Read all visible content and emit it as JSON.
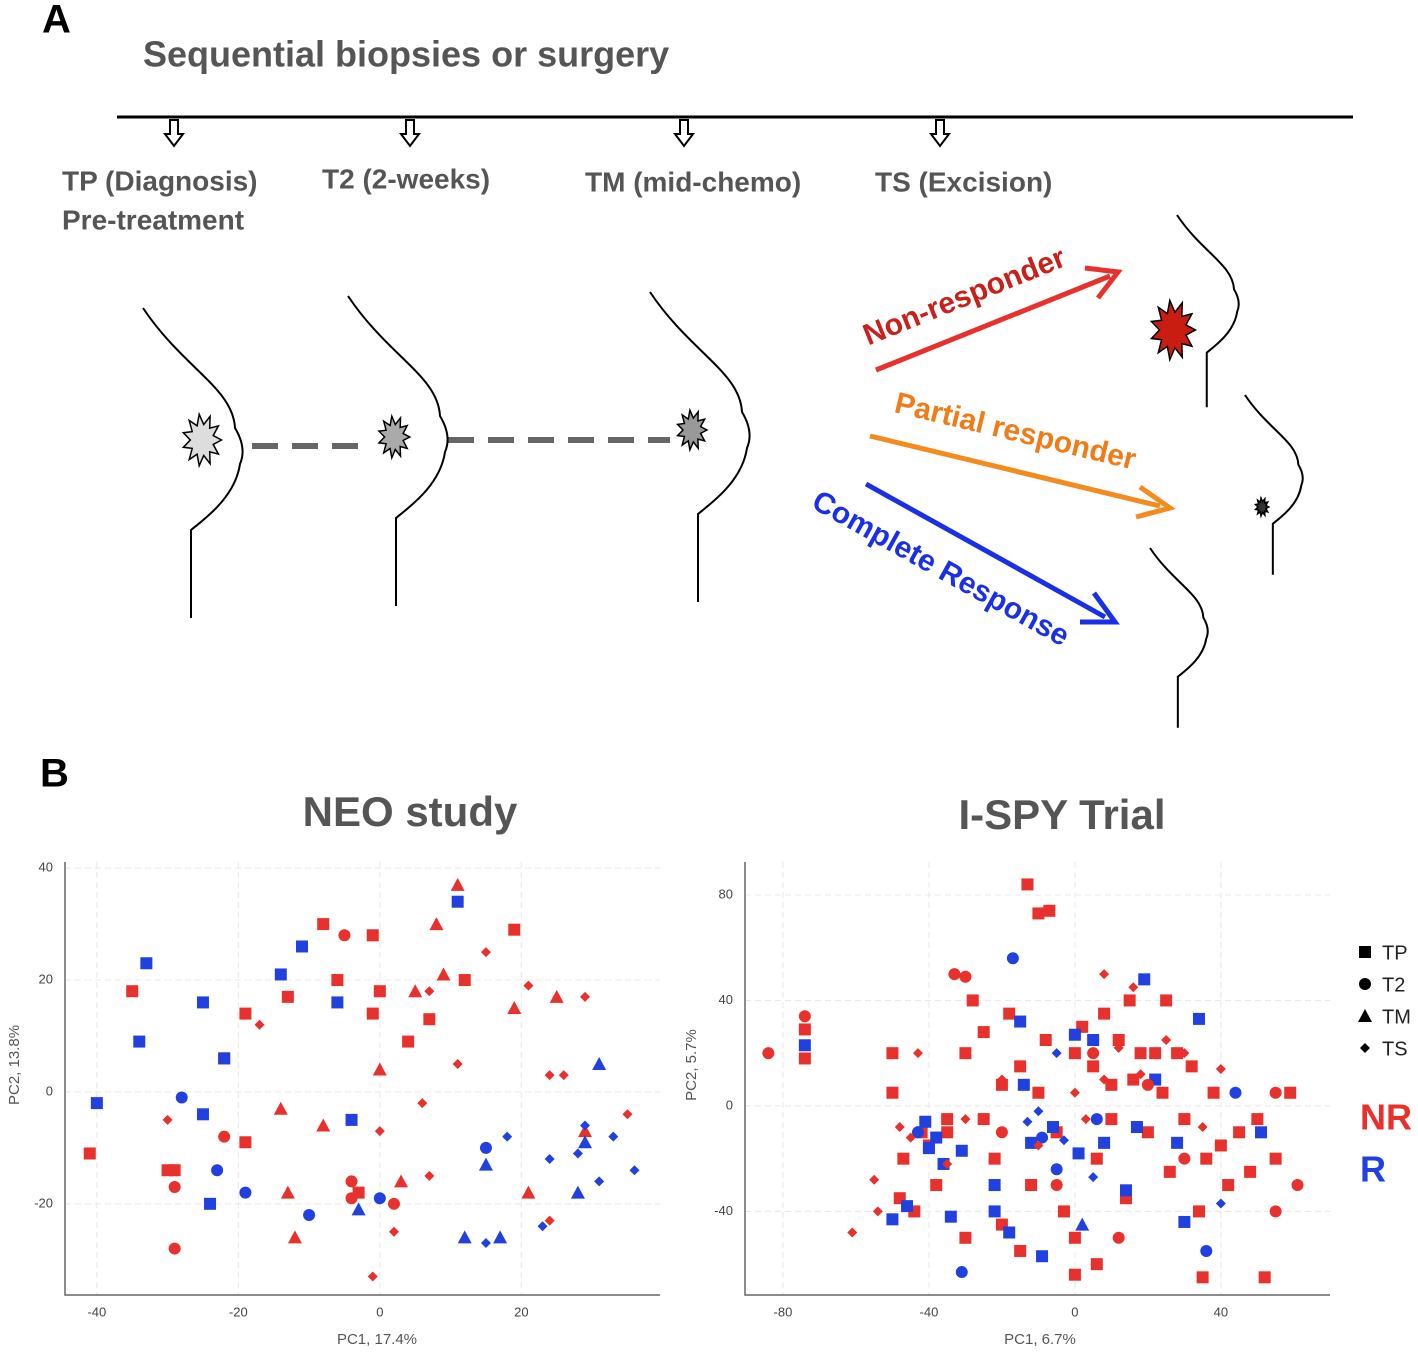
{
  "panel_a": {
    "label": "A",
    "title": "Sequential biopsies or surgery",
    "timepoints": [
      "TP (Diagnosis)",
      "Pre-treatment",
      "T2 (2-weeks)",
      "TM (mid-chemo)",
      "TS (Excision)"
    ],
    "responses": [
      "Non-responder",
      "Partial responder",
      "Complete Response"
    ]
  },
  "panel_b": {
    "label": "B"
  },
  "legend": {
    "markers": [
      {
        "name": "TP",
        "marker": "square"
      },
      {
        "name": "T2",
        "marker": "circle"
      },
      {
        "name": "TM",
        "marker": "triangle"
      },
      {
        "name": "TS",
        "marker": "diamond"
      }
    ],
    "groups": [
      {
        "name": "NR",
        "color": "#e8302c"
      },
      {
        "name": "R",
        "color": "#2140e0"
      }
    ]
  },
  "chart_data": [
    {
      "type": "scatter",
      "title": "NEO study",
      "x_label": "PC1, 17.4%",
      "y_label": "PC2, 13.8%",
      "xlim": [
        -44.5,
        39.6
      ],
      "ylim": [
        -36.3,
        41.1
      ],
      "xticks": [
        -40,
        -20,
        0,
        20
      ],
      "yticks": [
        -20,
        0,
        20,
        40
      ],
      "grid": true,
      "series": [
        {
          "color": "#e8302c",
          "marker": "square",
          "x": [
            -41,
            -35,
            -22,
            -19,
            -19,
            -13,
            -8,
            -6,
            -1,
            0,
            -1,
            4,
            7,
            12,
            19,
            -3,
            -29,
            -30
          ],
          "y": [
            -11,
            18,
            6,
            -9,
            14,
            17,
            30,
            20,
            28,
            18,
            14,
            9,
            13,
            20,
            29,
            -18,
            -14,
            -14
          ]
        },
        {
          "color": "#2140e0",
          "marker": "square",
          "x": [
            -40,
            -33,
            -34,
            -25,
            -25,
            -24,
            -22,
            -14,
            -11,
            -4,
            11,
            -6
          ],
          "y": [
            -2,
            23,
            9,
            16,
            -4,
            -20,
            6,
            21,
            26,
            -5,
            34,
            16
          ]
        },
        {
          "color": "#e8302c",
          "marker": "circle",
          "x": [
            -29,
            -29,
            -22,
            -5,
            -4,
            2,
            -4
          ],
          "y": [
            -17,
            -28,
            -8,
            28,
            -16,
            -20,
            -19
          ]
        },
        {
          "color": "#2140e0",
          "marker": "circle",
          "x": [
            -28,
            -23,
            -19,
            -10,
            0,
            15
          ],
          "y": [
            -1,
            -14,
            -18,
            -22,
            -19,
            -10
          ]
        },
        {
          "color": "#e8302c",
          "marker": "triangle",
          "x": [
            -14,
            -13,
            -12,
            -8,
            0,
            3,
            5,
            8,
            9,
            11,
            19,
            21,
            25,
            29
          ],
          "y": [
            -3,
            -18,
            -26,
            -6,
            4,
            -16,
            18,
            30,
            21,
            37,
            15,
            -18,
            17,
            -7
          ]
        },
        {
          "color": "#2140e0",
          "marker": "triangle",
          "x": [
            -3,
            12,
            15,
            17,
            28,
            29,
            31
          ],
          "y": [
            -21,
            -26,
            -13,
            -26,
            -18,
            -9,
            5
          ]
        },
        {
          "color": "#e8302c",
          "marker": "diamond",
          "x": [
            -30,
            -17,
            0,
            6,
            7,
            11,
            15,
            21,
            24,
            26,
            29,
            35,
            2,
            7,
            -1,
            24
          ],
          "y": [
            -5,
            12,
            -7,
            -2,
            18,
            5,
            25,
            19,
            3,
            3,
            17,
            -4,
            -25,
            -15,
            -33,
            -23
          ]
        },
        {
          "color": "#2140e0",
          "marker": "diamond",
          "x": [
            15,
            18,
            24,
            28,
            31,
            33,
            36,
            29,
            23
          ],
          "y": [
            -27,
            -8,
            -12,
            -11,
            -16,
            -8,
            -14,
            -6,
            -24
          ]
        }
      ]
    },
    {
      "type": "scatter",
      "title": "I-SPY Trial",
      "x_label": "PC1, 6.7%",
      "y_label": "PC2, 5.7%",
      "xlim": [
        -90.4,
        69.9
      ],
      "ylim": [
        -71.7,
        92.5
      ],
      "xticks": [
        -80,
        -40,
        0,
        40
      ],
      "yticks": [
        -40,
        0,
        40,
        80
      ],
      "grid": true,
      "series": [
        {
          "color": "#e8302c",
          "marker": "square",
          "x": [
            -13,
            -10,
            -7,
            -74,
            -74,
            -50,
            -50,
            -47,
            -42,
            -44,
            -38,
            -35,
            -30,
            -28,
            -25,
            -22,
            -20,
            -18,
            -15,
            -12,
            -10,
            -8,
            -5,
            -3,
            0,
            2,
            5,
            6,
            8,
            10,
            12,
            14,
            16,
            18,
            20,
            22,
            24,
            26,
            28,
            30,
            32,
            34,
            36,
            38,
            40,
            42,
            45,
            48,
            50,
            52,
            59,
            55,
            0,
            35,
            -40,
            -30,
            -15,
            -35,
            10,
            -48,
            25,
            -20,
            6,
            -25,
            15,
            0
          ],
          "y": [
            84,
            73,
            74,
            29,
            18,
            20,
            5,
            -20,
            -10,
            -40,
            -30,
            -10,
            20,
            40,
            -5,
            -20,
            -45,
            35,
            15,
            -30,
            5,
            25,
            -10,
            -40,
            -50,
            30,
            15,
            -20,
            35,
            -5,
            25,
            -35,
            10,
            20,
            -10,
            20,
            5,
            -25,
            20,
            -5,
            15,
            -40,
            -20,
            5,
            -15,
            -30,
            -10,
            -25,
            -5,
            -65,
            5,
            -20,
            -64,
            -65,
            -15,
            -50,
            -55,
            -5,
            8,
            -35,
            40,
            8,
            -60,
            28,
            40,
            20
          ]
        },
        {
          "color": "#2140e0",
          "marker": "square",
          "x": [
            -74,
            -50,
            -46,
            -41,
            -40,
            -38,
            -34,
            -31,
            -22,
            -22,
            -18,
            -15,
            -14,
            -12,
            -9,
            -6,
            0,
            5,
            8,
            14,
            17,
            19,
            22,
            28,
            30,
            34,
            51,
            -36,
            1
          ],
          "y": [
            23,
            -43,
            -38,
            -6,
            -16,
            -12,
            -42,
            -17,
            -30,
            -40,
            -48,
            32,
            8,
            -14,
            -57,
            -8,
            27,
            25,
            -14,
            -32,
            -8,
            48,
            10,
            -14,
            -44,
            33,
            -10,
            -22,
            -18
          ]
        },
        {
          "color": "#e8302c",
          "marker": "circle",
          "x": [
            -84,
            -74,
            -33,
            -30,
            -20,
            -5,
            5,
            20,
            30,
            55,
            61,
            55,
            12
          ],
          "y": [
            20,
            34,
            50,
            49,
            -10,
            -30,
            20,
            8,
            -20,
            -40,
            -30,
            5,
            -50
          ]
        },
        {
          "color": "#2140e0",
          "marker": "circle",
          "x": [
            -43,
            -31,
            -17,
            -9,
            6,
            36,
            44,
            -5
          ],
          "y": [
            -10,
            -63,
            56,
            -12,
            -5,
            -55,
            5,
            -24
          ]
        },
        {
          "color": "#2140e0",
          "marker": "triangle",
          "x": [
            2
          ],
          "y": [
            -45
          ]
        },
        {
          "color": "#e8302c",
          "marker": "diamond",
          "x": [
            -61,
            -54,
            -48,
            -45,
            -43,
            -35,
            -20,
            -10,
            0,
            8,
            12,
            18,
            25,
            30,
            35,
            -55,
            -30,
            8,
            16,
            3,
            40
          ],
          "y": [
            -48,
            -40,
            -8,
            -12,
            20,
            -22,
            10,
            -15,
            5,
            10,
            22,
            12,
            25,
            20,
            -8,
            -28,
            -5,
            50,
            45,
            -5,
            14
          ]
        },
        {
          "color": "#2140e0",
          "marker": "diamond",
          "x": [
            -5,
            -10,
            5,
            40,
            -13,
            -3
          ],
          "y": [
            20,
            -2,
            -27,
            -37,
            -6,
            -13
          ]
        }
      ]
    }
  ]
}
